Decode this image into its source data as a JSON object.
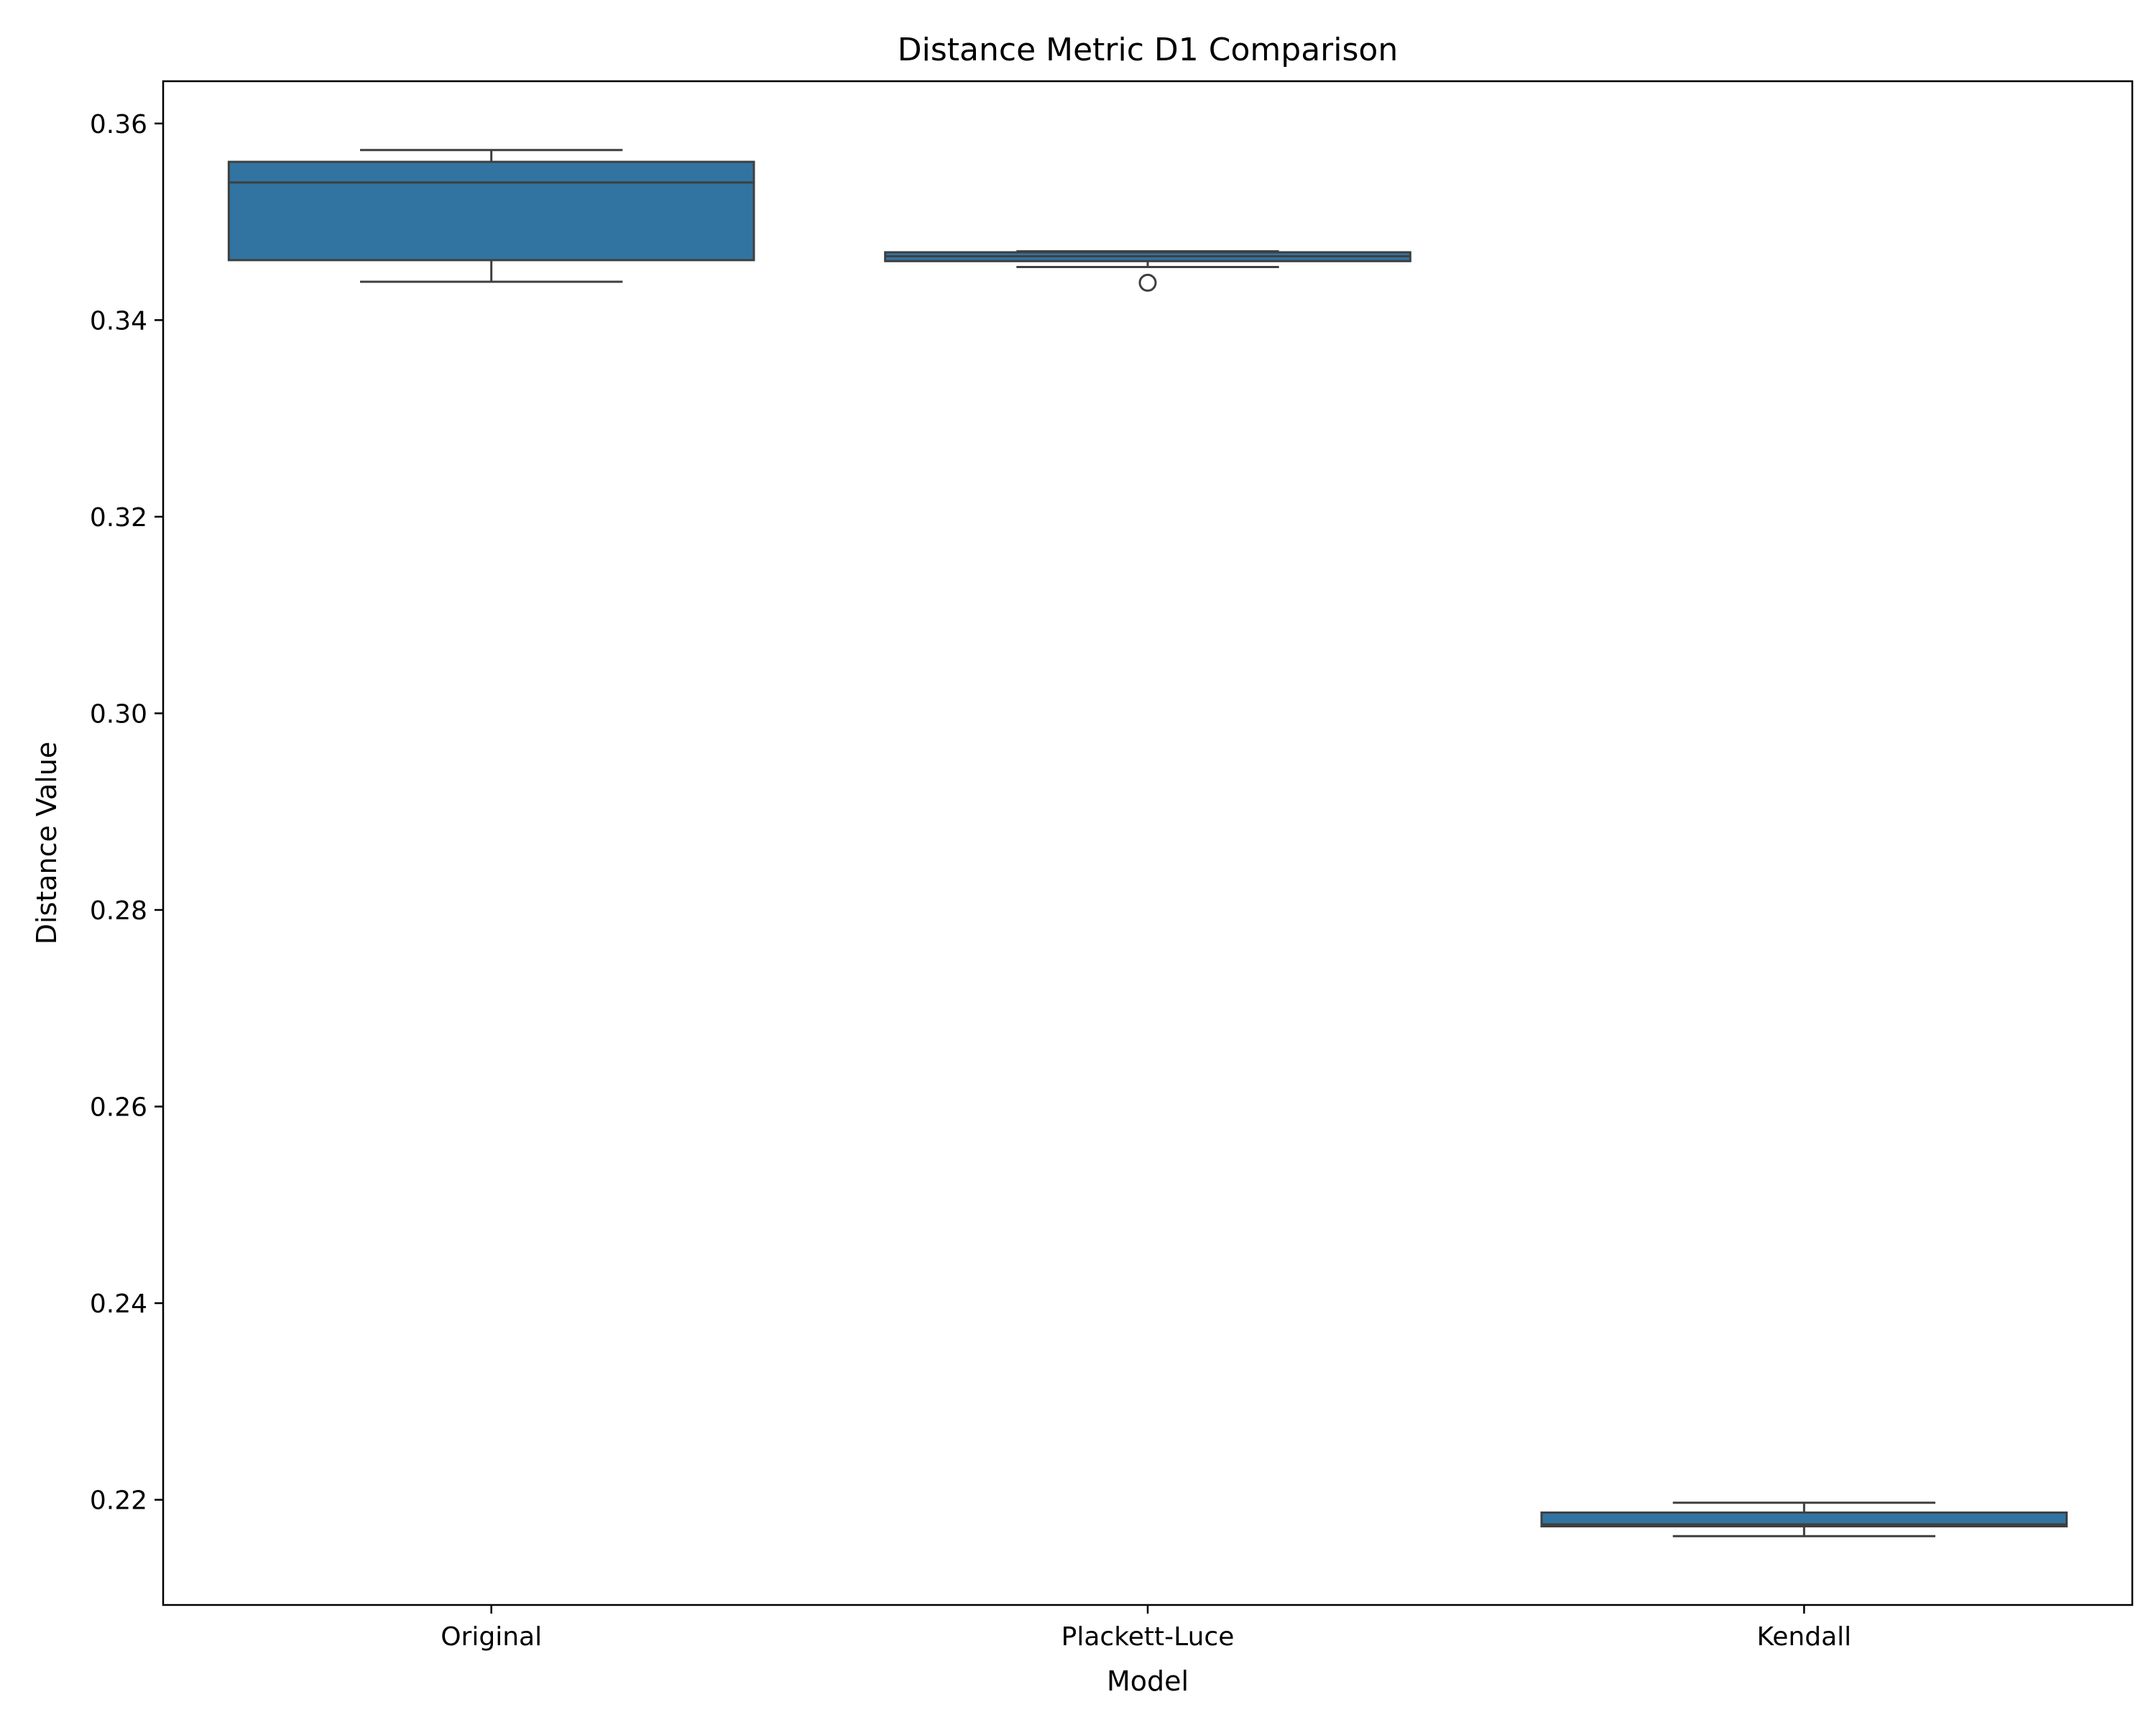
{
  "chart_data": {
    "type": "box",
    "title": "Distance Metric D1 Comparison",
    "xlabel": "Model",
    "ylabel": "Distance Value",
    "ylim": [
      0.2093,
      0.3643
    ],
    "yticks": [
      "0.22",
      "0.24",
      "0.26",
      "0.28",
      "0.30",
      "0.32",
      "0.34",
      "0.36"
    ],
    "grid": false,
    "box_color": "#3274a1",
    "line_color": "#3f3f3f",
    "categories": [
      "Original",
      "Plackett-Luce",
      "Kendall"
    ],
    "boxes": [
      {
        "name": "Original",
        "whisker_low": 0.3439,
        "q1": 0.3461,
        "median": 0.354,
        "q3": 0.3561,
        "whisker_high": 0.3573,
        "outliers": []
      },
      {
        "name": "Plackett-Luce",
        "whisker_low": 0.3454,
        "q1": 0.346,
        "median": 0.3465,
        "q3": 0.3469,
        "whisker_high": 0.347,
        "outliers": [
          0.3438
        ]
      },
      {
        "name": "Kendall",
        "whisker_low": 0.2163,
        "q1": 0.2173,
        "median": 0.2175,
        "q3": 0.2187,
        "whisker_high": 0.2197,
        "outliers": []
      }
    ]
  }
}
